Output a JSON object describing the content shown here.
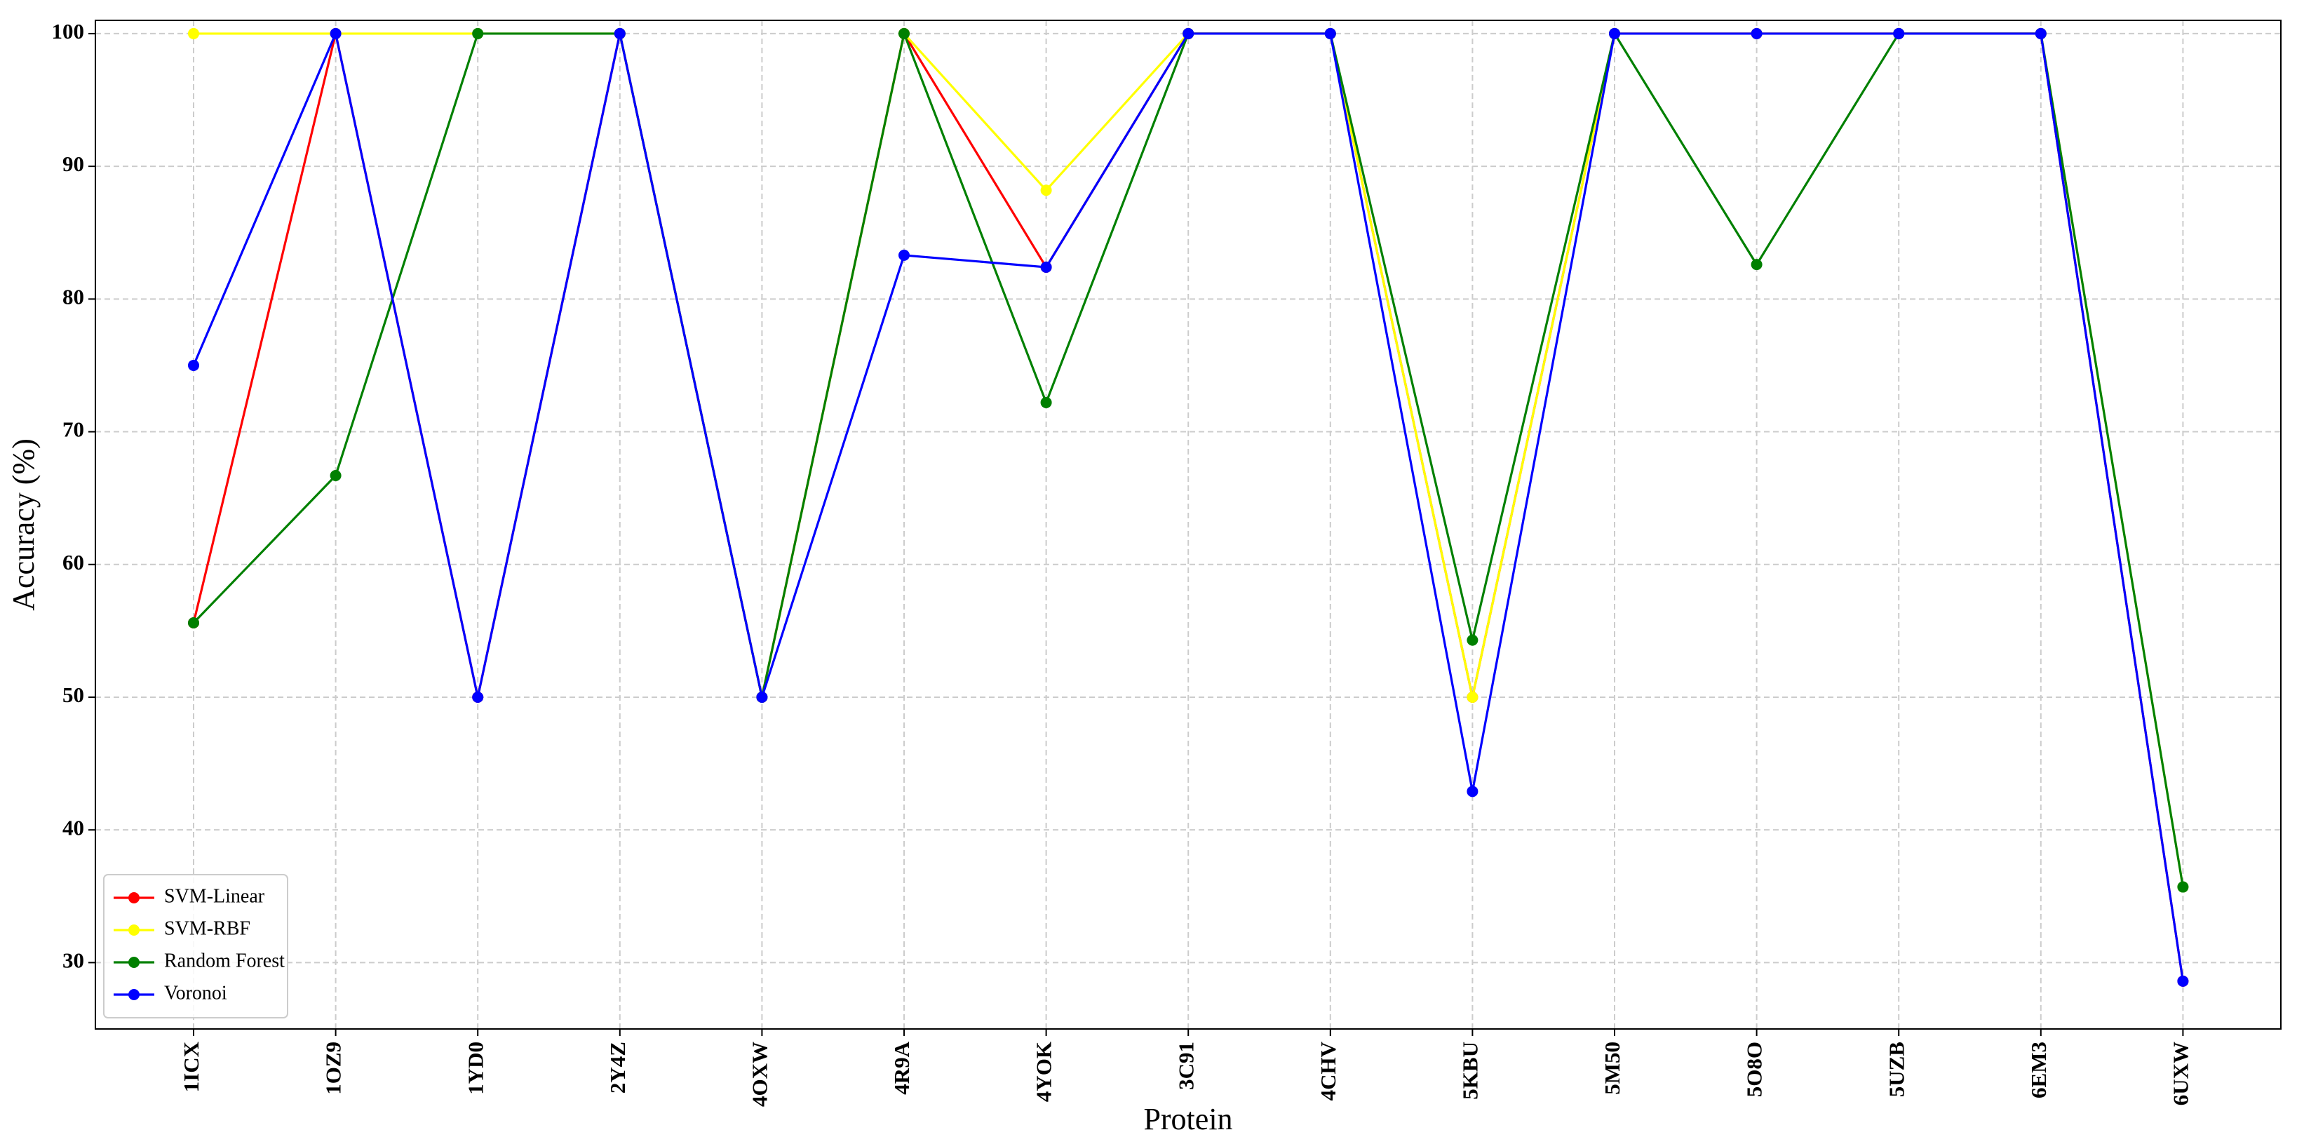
{
  "chart_data": {
    "type": "line",
    "xlabel": "Protein",
    "ylabel": "Accuracy (%)",
    "categories": [
      "1ICX",
      "1OZ9",
      "1YD0",
      "2Y4Z",
      "4OXW",
      "4R9A",
      "4YOK",
      "3C91",
      "4CHV",
      "5KBU",
      "5M50",
      "5O8O",
      "5UZB",
      "6EM3",
      "6UXW"
    ],
    "series": [
      {
        "name": "SVM-Linear",
        "color": "#ff0000",
        "values": [
          55.6,
          100,
          50,
          100,
          50,
          100,
          82.4,
          100,
          100,
          50,
          100,
          100,
          100,
          100,
          28.6
        ]
      },
      {
        "name": "SVM-RBF",
        "color": "#ffff00",
        "values": [
          100,
          100,
          100,
          100,
          50,
          100,
          88.2,
          100,
          100,
          50,
          100,
          100,
          100,
          100,
          35.7
        ]
      },
      {
        "name": "Random Forest",
        "color": "#008000",
        "values": [
          55.6,
          66.7,
          100,
          100,
          50,
          100,
          72.2,
          100,
          100,
          54.3,
          100,
          82.6,
          100,
          100,
          35.7
        ]
      },
      {
        "name": "Voronoi",
        "color": "#0000ff",
        "values": [
          75,
          100,
          50,
          100,
          50,
          83.3,
          82.4,
          100,
          100,
          42.9,
          100,
          100,
          100,
          100,
          28.6
        ]
      }
    ],
    "ylim": [
      25,
      101
    ],
    "yticks": [
      30,
      40,
      50,
      60,
      70,
      80,
      90,
      100
    ],
    "grid": true,
    "legend": "lower left"
  }
}
